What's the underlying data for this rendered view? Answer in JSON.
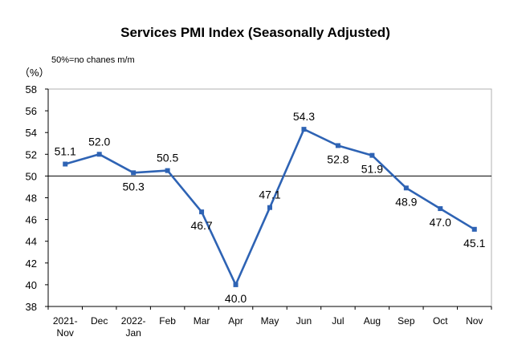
{
  "chart_data": {
    "type": "line",
    "title": "Services PMI Index (Seasonally Adjusted)",
    "unit_label": "（%）",
    "note": "50%=no chanes m/m",
    "categories": [
      "2021-\nNov",
      "Dec",
      "2022-\nJan",
      "Feb",
      "Mar",
      "Apr",
      "May",
      "Jun",
      "Jul",
      "Aug",
      "Sep",
      "Oct",
      "Nov"
    ],
    "series": [
      {
        "values": [
          51.1,
          52.0,
          50.3,
          50.5,
          46.7,
          40.0,
          47.1,
          54.3,
          52.8,
          51.9,
          48.9,
          47.0,
          45.1
        ]
      }
    ],
    "data_labels": [
      "51.1",
      "52.0",
      "50.3",
      "50.5",
      "46.7",
      "40.0",
      "47.1",
      "54.3",
      "52.8",
      "51.9",
      "48.9",
      "47.0",
      "45.1"
    ],
    "yticks": [
      "38",
      "40",
      "42",
      "44",
      "46",
      "48",
      "50",
      "52",
      "54",
      "56",
      "58"
    ],
    "ylim": [
      38,
      58
    ],
    "reference_line": 50,
    "grid": false,
    "colors": {
      "line": "#2e63b4",
      "marker": "#2e63b4",
      "axis": "#000000",
      "frame": "#b0b0b0"
    }
  }
}
